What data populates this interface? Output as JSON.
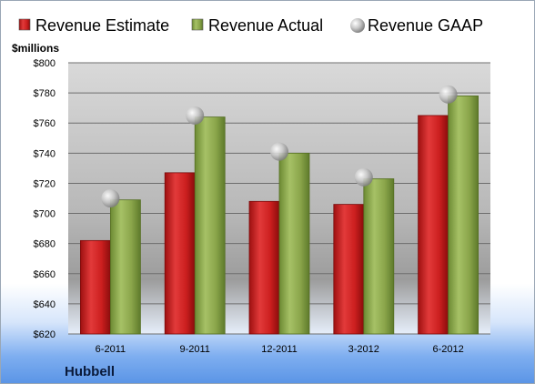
{
  "chart_data": {
    "type": "bar",
    "unit_label": "$millions",
    "company": "Hubbell",
    "categories": [
      "6-2011",
      "9-2011",
      "12-2011",
      "3-2012",
      "6-2012"
    ],
    "series": [
      {
        "name": "Revenue Estimate",
        "kind": "bar",
        "color": "#cc1f1f",
        "values": [
          682,
          727,
          708,
          706,
          765
        ]
      },
      {
        "name": "Revenue Actual",
        "kind": "bar",
        "color": "#8aa54a",
        "values": [
          709,
          764,
          740,
          723,
          778
        ]
      },
      {
        "name": "Revenue GAAP",
        "kind": "marker",
        "color": "#c8c8c8",
        "values": [
          710,
          765,
          741,
          724,
          779
        ]
      }
    ],
    "ylim": [
      620,
      800
    ],
    "yticks": [
      620,
      640,
      660,
      680,
      700,
      720,
      740,
      760,
      780,
      800
    ],
    "ytick_labels": [
      "$620",
      "$640",
      "$660",
      "$680",
      "$700",
      "$720",
      "$740",
      "$760",
      "$780",
      "$800"
    ],
    "grid": true,
    "legend_position": "top"
  }
}
